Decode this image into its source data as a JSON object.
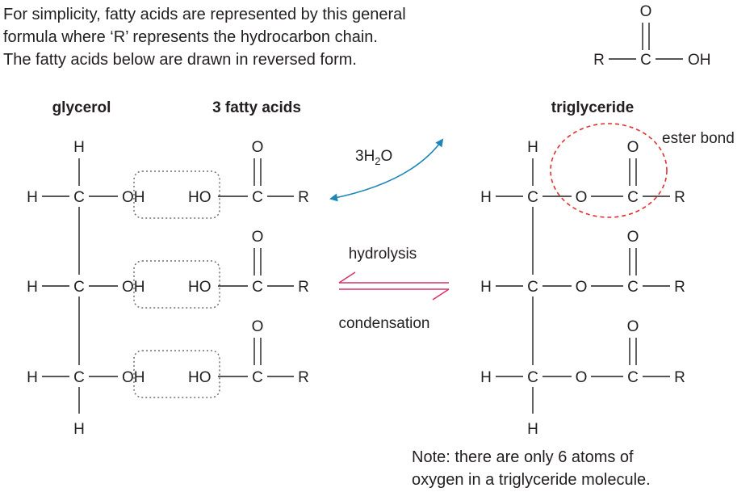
{
  "intro": {
    "line1": "For simplicity, fatty acids are represented by this general",
    "line2": "formula where ‘R’ represents the hydrocarbon chain.",
    "line3": "The fatty acids below are drawn in reversed form."
  },
  "atoms": {
    "H": "H",
    "C": "C",
    "O": "O",
    "R": "R",
    "OH": "OH",
    "HO": "HO"
  },
  "general_formula": {
    "r": "R",
    "c": "C",
    "o": "O",
    "oh": "OH"
  },
  "headings": {
    "glycerol": "glycerol",
    "fatty_acids": "3 fatty acids",
    "triglyceride": "triglyceride"
  },
  "labels": {
    "water_coef": "3H",
    "water_sub": "2",
    "water_o": "O",
    "ester_bond": "ester bond",
    "hydrolysis": "hydrolysis",
    "condensation": "condensation"
  },
  "note": {
    "line1": "Note: there are only 6 atoms of",
    "line2": "oxygen in a triglyceride molecule."
  },
  "colors": {
    "text": "#231f20",
    "water_arrow": "#1f86b8",
    "equilibrium_arrow": "#d6336c",
    "ester_circle": "#e03131",
    "dotted_box": "#6d6e71"
  }
}
